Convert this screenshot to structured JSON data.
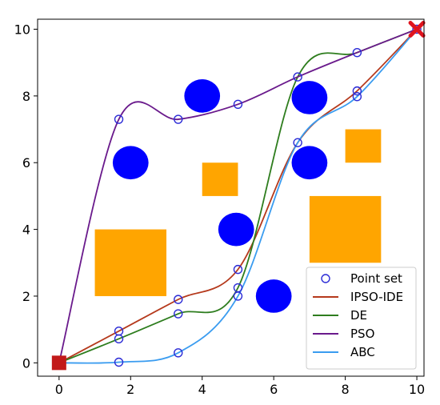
{
  "chart_data": {
    "type": "line",
    "xlim": [
      -0.6,
      10.2
    ],
    "ylim": [
      -0.4,
      10.3
    ],
    "x_ticks": [
      "0",
      "2",
      "4",
      "6",
      "8",
      "10"
    ],
    "y_ticks": [
      "0",
      "2",
      "4",
      "6",
      "8",
      "10"
    ],
    "x_tick_values": [
      0,
      2,
      4,
      6,
      8,
      10
    ],
    "y_tick_values": [
      0,
      2,
      4,
      6,
      8,
      10
    ],
    "grid": false,
    "legend_position": "bottom-right",
    "start": {
      "x": 0,
      "y": 0,
      "color": "#c21a1a"
    },
    "goal": {
      "x": 10,
      "y": 10,
      "color": "#e0141e"
    },
    "obstacles": {
      "circles": [
        {
          "x": 4.0,
          "y": 8.0,
          "r": 0.5,
          "color": "#0000ff"
        },
        {
          "x": 2.0,
          "y": 6.0,
          "r": 0.5,
          "color": "#0000ff"
        },
        {
          "x": 7.0,
          "y": 7.95,
          "r": 0.5,
          "color": "#0000ff"
        },
        {
          "x": 7.0,
          "y": 6.0,
          "r": 0.5,
          "color": "#0000ff"
        },
        {
          "x": 4.95,
          "y": 4.0,
          "r": 0.5,
          "color": "#0000ff"
        },
        {
          "x": 6.0,
          "y": 2.0,
          "r": 0.5,
          "color": "#0000ff"
        }
      ],
      "rectangles": [
        {
          "x0": 1.0,
          "y0": 2.0,
          "x1": 3.0,
          "y1": 4.0,
          "color": "#ffa500"
        },
        {
          "x0": 4.0,
          "y0": 5.0,
          "x1": 5.0,
          "y1": 6.0,
          "color": "#ffa500"
        },
        {
          "x0": 7.0,
          "y0": 3.0,
          "x1": 9.0,
          "y1": 5.0,
          "color": "#ffa500"
        },
        {
          "x0": 8.0,
          "y0": 6.0,
          "x1": 9.0,
          "y1": 7.0,
          "color": "#ffa500"
        }
      ]
    },
    "point_set": {
      "name": "Point set",
      "color": "#2b2bd6",
      "points": [
        [
          0,
          0
        ],
        [
          1.67,
          7.3
        ],
        [
          3.33,
          7.3
        ],
        [
          5.0,
          7.75
        ],
        [
          6.67,
          8.57
        ],
        [
          8.33,
          9.3
        ],
        [
          1.67,
          0.95
        ],
        [
          3.33,
          1.9
        ],
        [
          5.0,
          2.8
        ],
        [
          6.67,
          6.6
        ],
        [
          8.33,
          8.15
        ],
        [
          1.67,
          0.72
        ],
        [
          3.33,
          1.47
        ],
        [
          5.0,
          2.25
        ],
        [
          8.33,
          7.98
        ],
        [
          1.67,
          0.02
        ],
        [
          3.33,
          0.3
        ],
        [
          5.0,
          2.0
        ],
        [
          10,
          10
        ]
      ]
    },
    "series": [
      {
        "name": "IPSO-IDE",
        "color": "#b5391c",
        "x": [
          0,
          1.67,
          3.33,
          5.0,
          6.67,
          8.33,
          10
        ],
        "y": [
          0,
          0.95,
          1.9,
          2.8,
          6.6,
          8.15,
          10
        ]
      },
      {
        "name": "DE",
        "color": "#2e7d1e",
        "x": [
          0,
          1.67,
          3.33,
          5.0,
          6.67,
          8.33,
          10
        ],
        "y": [
          0,
          0.72,
          1.47,
          2.25,
          8.57,
          9.3,
          10
        ]
      },
      {
        "name": "PSO",
        "color": "#6a1a8c",
        "x": [
          0,
          1.67,
          3.33,
          5.0,
          6.67,
          8.33,
          10
        ],
        "y": [
          0,
          7.3,
          7.3,
          7.75,
          8.57,
          9.3,
          10
        ]
      },
      {
        "name": "ABC",
        "color": "#3a9cf0",
        "x": [
          0,
          1.67,
          3.33,
          5.0,
          6.67,
          8.33,
          10
        ],
        "y": [
          0,
          0.02,
          0.3,
          2.0,
          6.6,
          7.98,
          10
        ]
      }
    ]
  }
}
